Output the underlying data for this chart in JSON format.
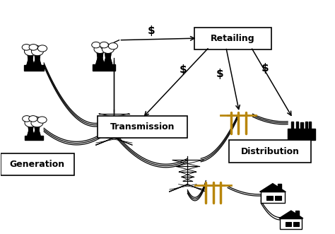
{
  "bg_color": "#ffffff",
  "label_generation": "Generation",
  "label_transmission": "Transmission",
  "label_retailing": "Retailing",
  "label_distribution": "Distribution",
  "dollar_sign": "$",
  "box_color": "#ffffff",
  "box_edge_color": "#000000",
  "arrow_color": "#000000",
  "wire_color": "#000000",
  "pole_color": "#b8860b",
  "text_color": "#000000",
  "font_size_labels": 9,
  "font_size_dollar": 11
}
